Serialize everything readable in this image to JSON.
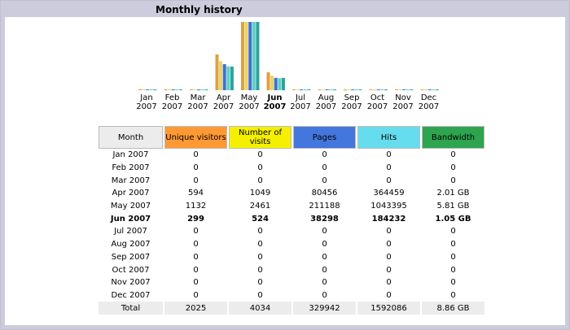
{
  "title": "Monthly history",
  "chart_data": {
    "type": "bar",
    "categories": [
      "Jan 2007",
      "Feb 2007",
      "Mar 2007",
      "Apr 2007",
      "May 2007",
      "Jun 2007",
      "Jul 2007",
      "Aug 2007",
      "Sep 2007",
      "Oct 2007",
      "Nov 2007",
      "Dec 2007"
    ],
    "x_labels": [
      {
        "m": "Jan",
        "y": "2007"
      },
      {
        "m": "Feb",
        "y": "2007"
      },
      {
        "m": "Mar",
        "y": "2007"
      },
      {
        "m": "Apr",
        "y": "2007"
      },
      {
        "m": "May",
        "y": "2007"
      },
      {
        "m": "Jun",
        "y": "2007"
      },
      {
        "m": "Jul",
        "y": "2007"
      },
      {
        "m": "Aug",
        "y": "2007"
      },
      {
        "m": "Sep",
        "y": "2007"
      },
      {
        "m": "Oct",
        "y": "2007"
      },
      {
        "m": "Nov",
        "y": "2007"
      },
      {
        "m": "Dec",
        "y": "2007"
      }
    ],
    "highlight_index": 5,
    "series": [
      {
        "key": "unique",
        "color": "#e0a040",
        "values": [
          0,
          0,
          0,
          594,
          1132,
          299,
          0,
          0,
          0,
          0,
          0,
          0
        ]
      },
      {
        "key": "visits",
        "color": "#e6d26a",
        "values": [
          0,
          0,
          0,
          1049,
          2461,
          524,
          0,
          0,
          0,
          0,
          0,
          0
        ]
      },
      {
        "key": "pages",
        "color": "#3f6fd0",
        "values": [
          0,
          0,
          0,
          80456,
          211188,
          38298,
          0,
          0,
          0,
          0,
          0,
          0
        ]
      },
      {
        "key": "hits",
        "color": "#5fcfc4",
        "values": [
          0,
          0,
          0,
          364459,
          1043395,
          184232,
          0,
          0,
          0,
          0,
          0,
          0
        ]
      },
      {
        "key": "bandwidth",
        "color": "#2aa39a",
        "values": [
          0,
          0,
          0,
          2.01,
          5.81,
          1.05,
          0,
          0,
          0,
          0,
          0,
          0
        ]
      }
    ]
  },
  "table": {
    "headers": {
      "month": "Month",
      "unique": "Unique visitors",
      "visits": "Number of visits",
      "pages": "Pages",
      "hits": "Hits",
      "bandwidth": "Bandwidth"
    },
    "rows": [
      {
        "month": "Jan 2007",
        "unique": "0",
        "visits": "0",
        "pages": "0",
        "hits": "0",
        "bandwidth": "0"
      },
      {
        "month": "Feb 2007",
        "unique": "0",
        "visits": "0",
        "pages": "0",
        "hits": "0",
        "bandwidth": "0"
      },
      {
        "month": "Mar 2007",
        "unique": "0",
        "visits": "0",
        "pages": "0",
        "hits": "0",
        "bandwidth": "0"
      },
      {
        "month": "Apr 2007",
        "unique": "594",
        "visits": "1049",
        "pages": "80456",
        "hits": "364459",
        "bandwidth": "2.01 GB"
      },
      {
        "month": "May 2007",
        "unique": "1132",
        "visits": "2461",
        "pages": "211188",
        "hits": "1043395",
        "bandwidth": "5.81 GB"
      },
      {
        "month": "Jun 2007",
        "unique": "299",
        "visits": "524",
        "pages": "38298",
        "hits": "184232",
        "bandwidth": "1.05 GB"
      },
      {
        "month": "Jul 2007",
        "unique": "0",
        "visits": "0",
        "pages": "0",
        "hits": "0",
        "bandwidth": "0"
      },
      {
        "month": "Aug 2007",
        "unique": "0",
        "visits": "0",
        "pages": "0",
        "hits": "0",
        "bandwidth": "0"
      },
      {
        "month": "Sep 2007",
        "unique": "0",
        "visits": "0",
        "pages": "0",
        "hits": "0",
        "bandwidth": "0"
      },
      {
        "month": "Oct 2007",
        "unique": "0",
        "visits": "0",
        "pages": "0",
        "hits": "0",
        "bandwidth": "0"
      },
      {
        "month": "Nov 2007",
        "unique": "0",
        "visits": "0",
        "pages": "0",
        "hits": "0",
        "bandwidth": "0"
      },
      {
        "month": "Dec 2007",
        "unique": "0",
        "visits": "0",
        "pages": "0",
        "hits": "0",
        "bandwidth": "0"
      }
    ],
    "total": {
      "label": "Total",
      "unique": "2025",
      "visits": "4034",
      "pages": "329942",
      "hits": "1592086",
      "bandwidth": "8.86 GB"
    }
  }
}
